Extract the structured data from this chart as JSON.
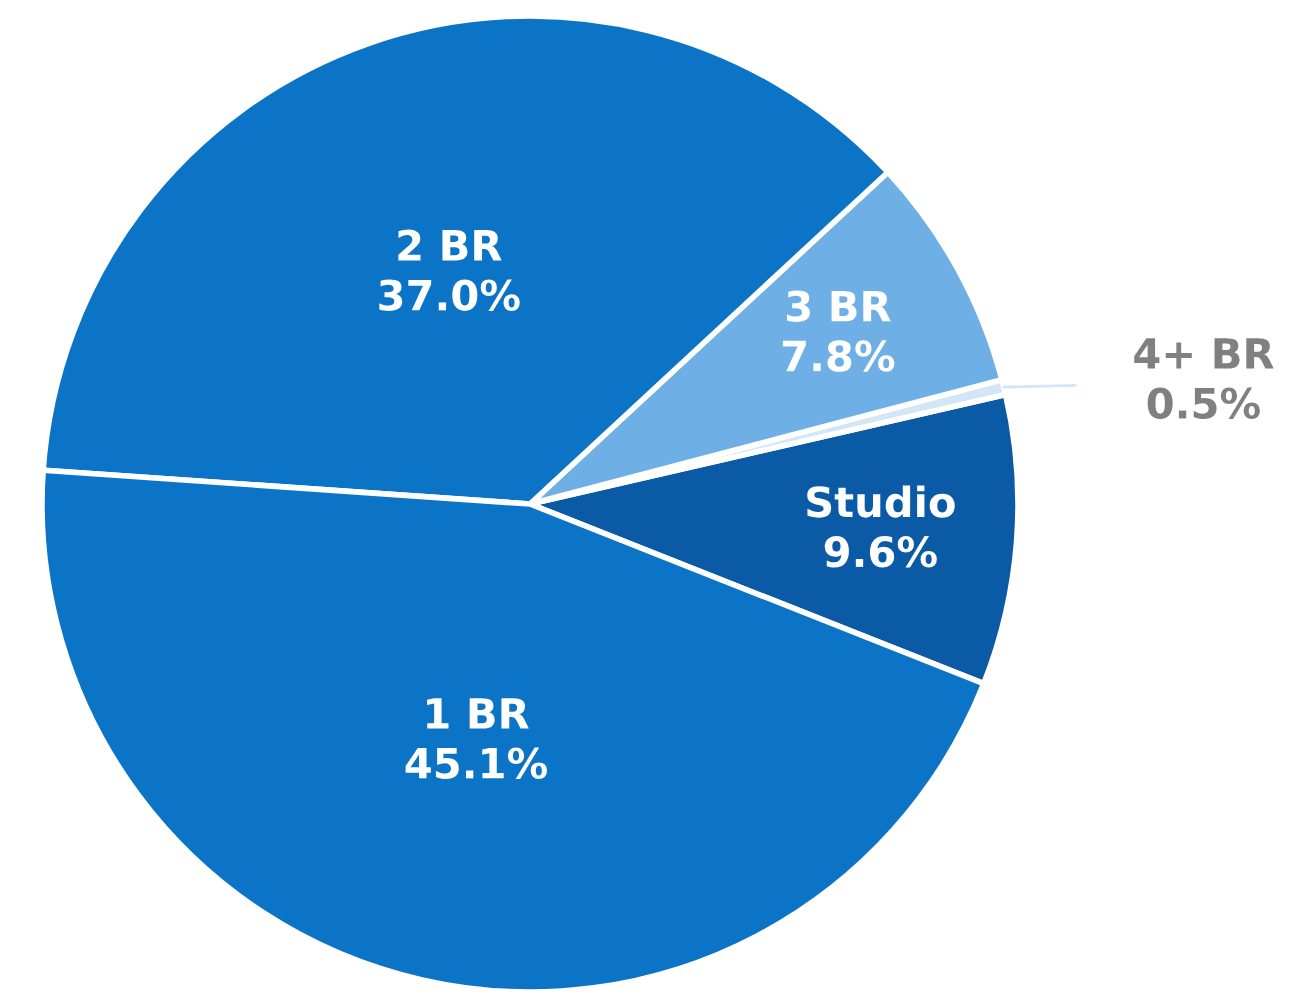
{
  "chart_data": {
    "type": "pie",
    "categories": [
      "Studio",
      "4+ BR",
      "3 BR",
      "2 BR",
      "1 BR"
    ],
    "values": [
      9.6,
      0.5,
      7.8,
      37.0,
      45.1
    ],
    "value_labels": [
      "9.6%",
      "0.5%",
      "7.8%",
      "37.0%",
      "45.1%"
    ],
    "colors": [
      "#0b5aa6",
      "#d3e6f6",
      "#6eb0e6",
      "#0c74c6",
      "#0c74c6"
    ]
  }
}
